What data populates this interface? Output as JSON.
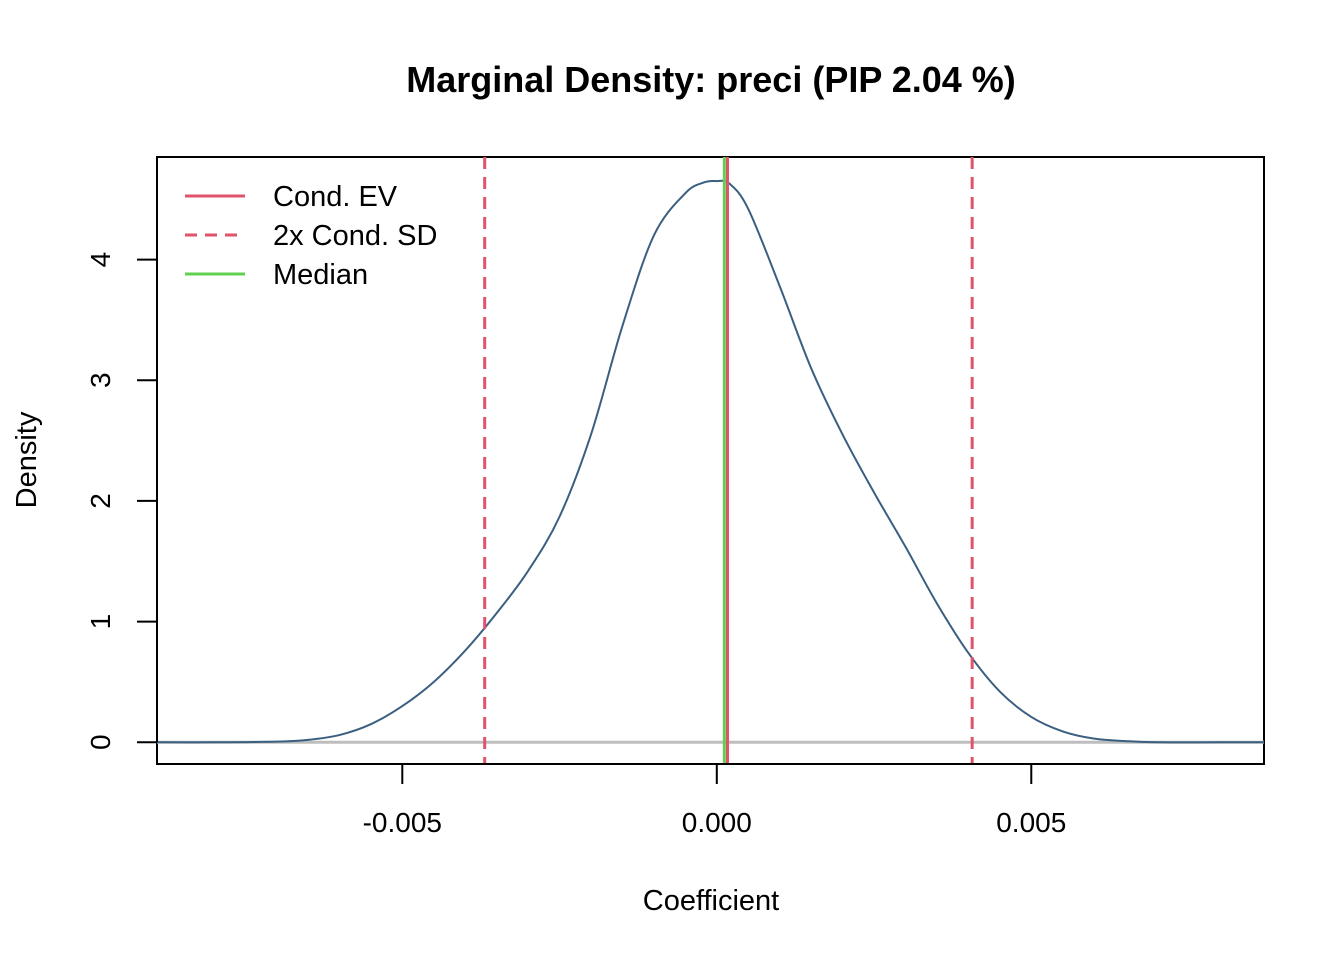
{
  "chart_data": {
    "type": "line",
    "title": "Marginal Density: preci (PIP 2.04 %)",
    "xlabel": "Coefficient",
    "ylabel": "Density",
    "xlim": [
      -0.0089,
      0.0087
    ],
    "ylim": [
      -0.18,
      4.85
    ],
    "x_ticks": [
      {
        "value": -0.005,
        "label": "-0.005"
      },
      {
        "value": 0.0,
        "label": "0.000"
      },
      {
        "value": 0.005,
        "label": "0.005"
      }
    ],
    "y_ticks": [
      {
        "value": 0,
        "label": "0"
      },
      {
        "value": 1,
        "label": "1"
      },
      {
        "value": 2,
        "label": "2"
      },
      {
        "value": 3,
        "label": "3"
      },
      {
        "value": 4,
        "label": "4"
      }
    ],
    "density_color": "#3B5F80",
    "baseline_color": "#BEBEBE",
    "density_curve": {
      "x": [
        -0.0089,
        -0.008,
        -0.007,
        -0.0065,
        -0.006,
        -0.0055,
        -0.005,
        -0.0045,
        -0.004,
        -0.0035,
        -0.003,
        -0.0025,
        -0.002,
        -0.0015,
        -0.001,
        -0.0005,
        -0.0002,
        0.0,
        0.0002,
        0.0005,
        0.001,
        0.0015,
        0.002,
        0.0025,
        0.003,
        0.0035,
        0.004,
        0.0045,
        0.005,
        0.0055,
        0.006,
        0.0065,
        0.007,
        0.008,
        0.0087
      ],
      "y": [
        0.0,
        0.0,
        0.005,
        0.02,
        0.06,
        0.15,
        0.3,
        0.5,
        0.76,
        1.07,
        1.42,
        1.87,
        2.55,
        3.45,
        4.2,
        4.55,
        4.64,
        4.65,
        4.63,
        4.42,
        3.78,
        3.1,
        2.55,
        2.07,
        1.62,
        1.15,
        0.74,
        0.42,
        0.21,
        0.09,
        0.03,
        0.01,
        0.0,
        0.0,
        0.0
      ]
    },
    "vlines": [
      {
        "name": "Cond. EV",
        "x": 0.00017,
        "color": "#DF536B",
        "style": "solid"
      },
      {
        "name": "2x Cond. SD",
        "x": -0.00369,
        "color": "#DF536B",
        "style": "dashed"
      },
      {
        "name": "2x Cond. SD",
        "x": 0.00406,
        "color": "#DF536B",
        "style": "dashed"
      },
      {
        "name": "Median",
        "x": 0.00012,
        "color": "#61D04F",
        "style": "solid"
      }
    ],
    "legend": {
      "position": "top-left",
      "entries": [
        {
          "label": "Cond. EV",
          "color": "#DF536B",
          "style": "solid"
        },
        {
          "label": "2x Cond. SD",
          "color": "#DF536B",
          "style": "dashed"
        },
        {
          "label": "Median",
          "color": "#61D04F",
          "style": "solid"
        }
      ]
    }
  }
}
